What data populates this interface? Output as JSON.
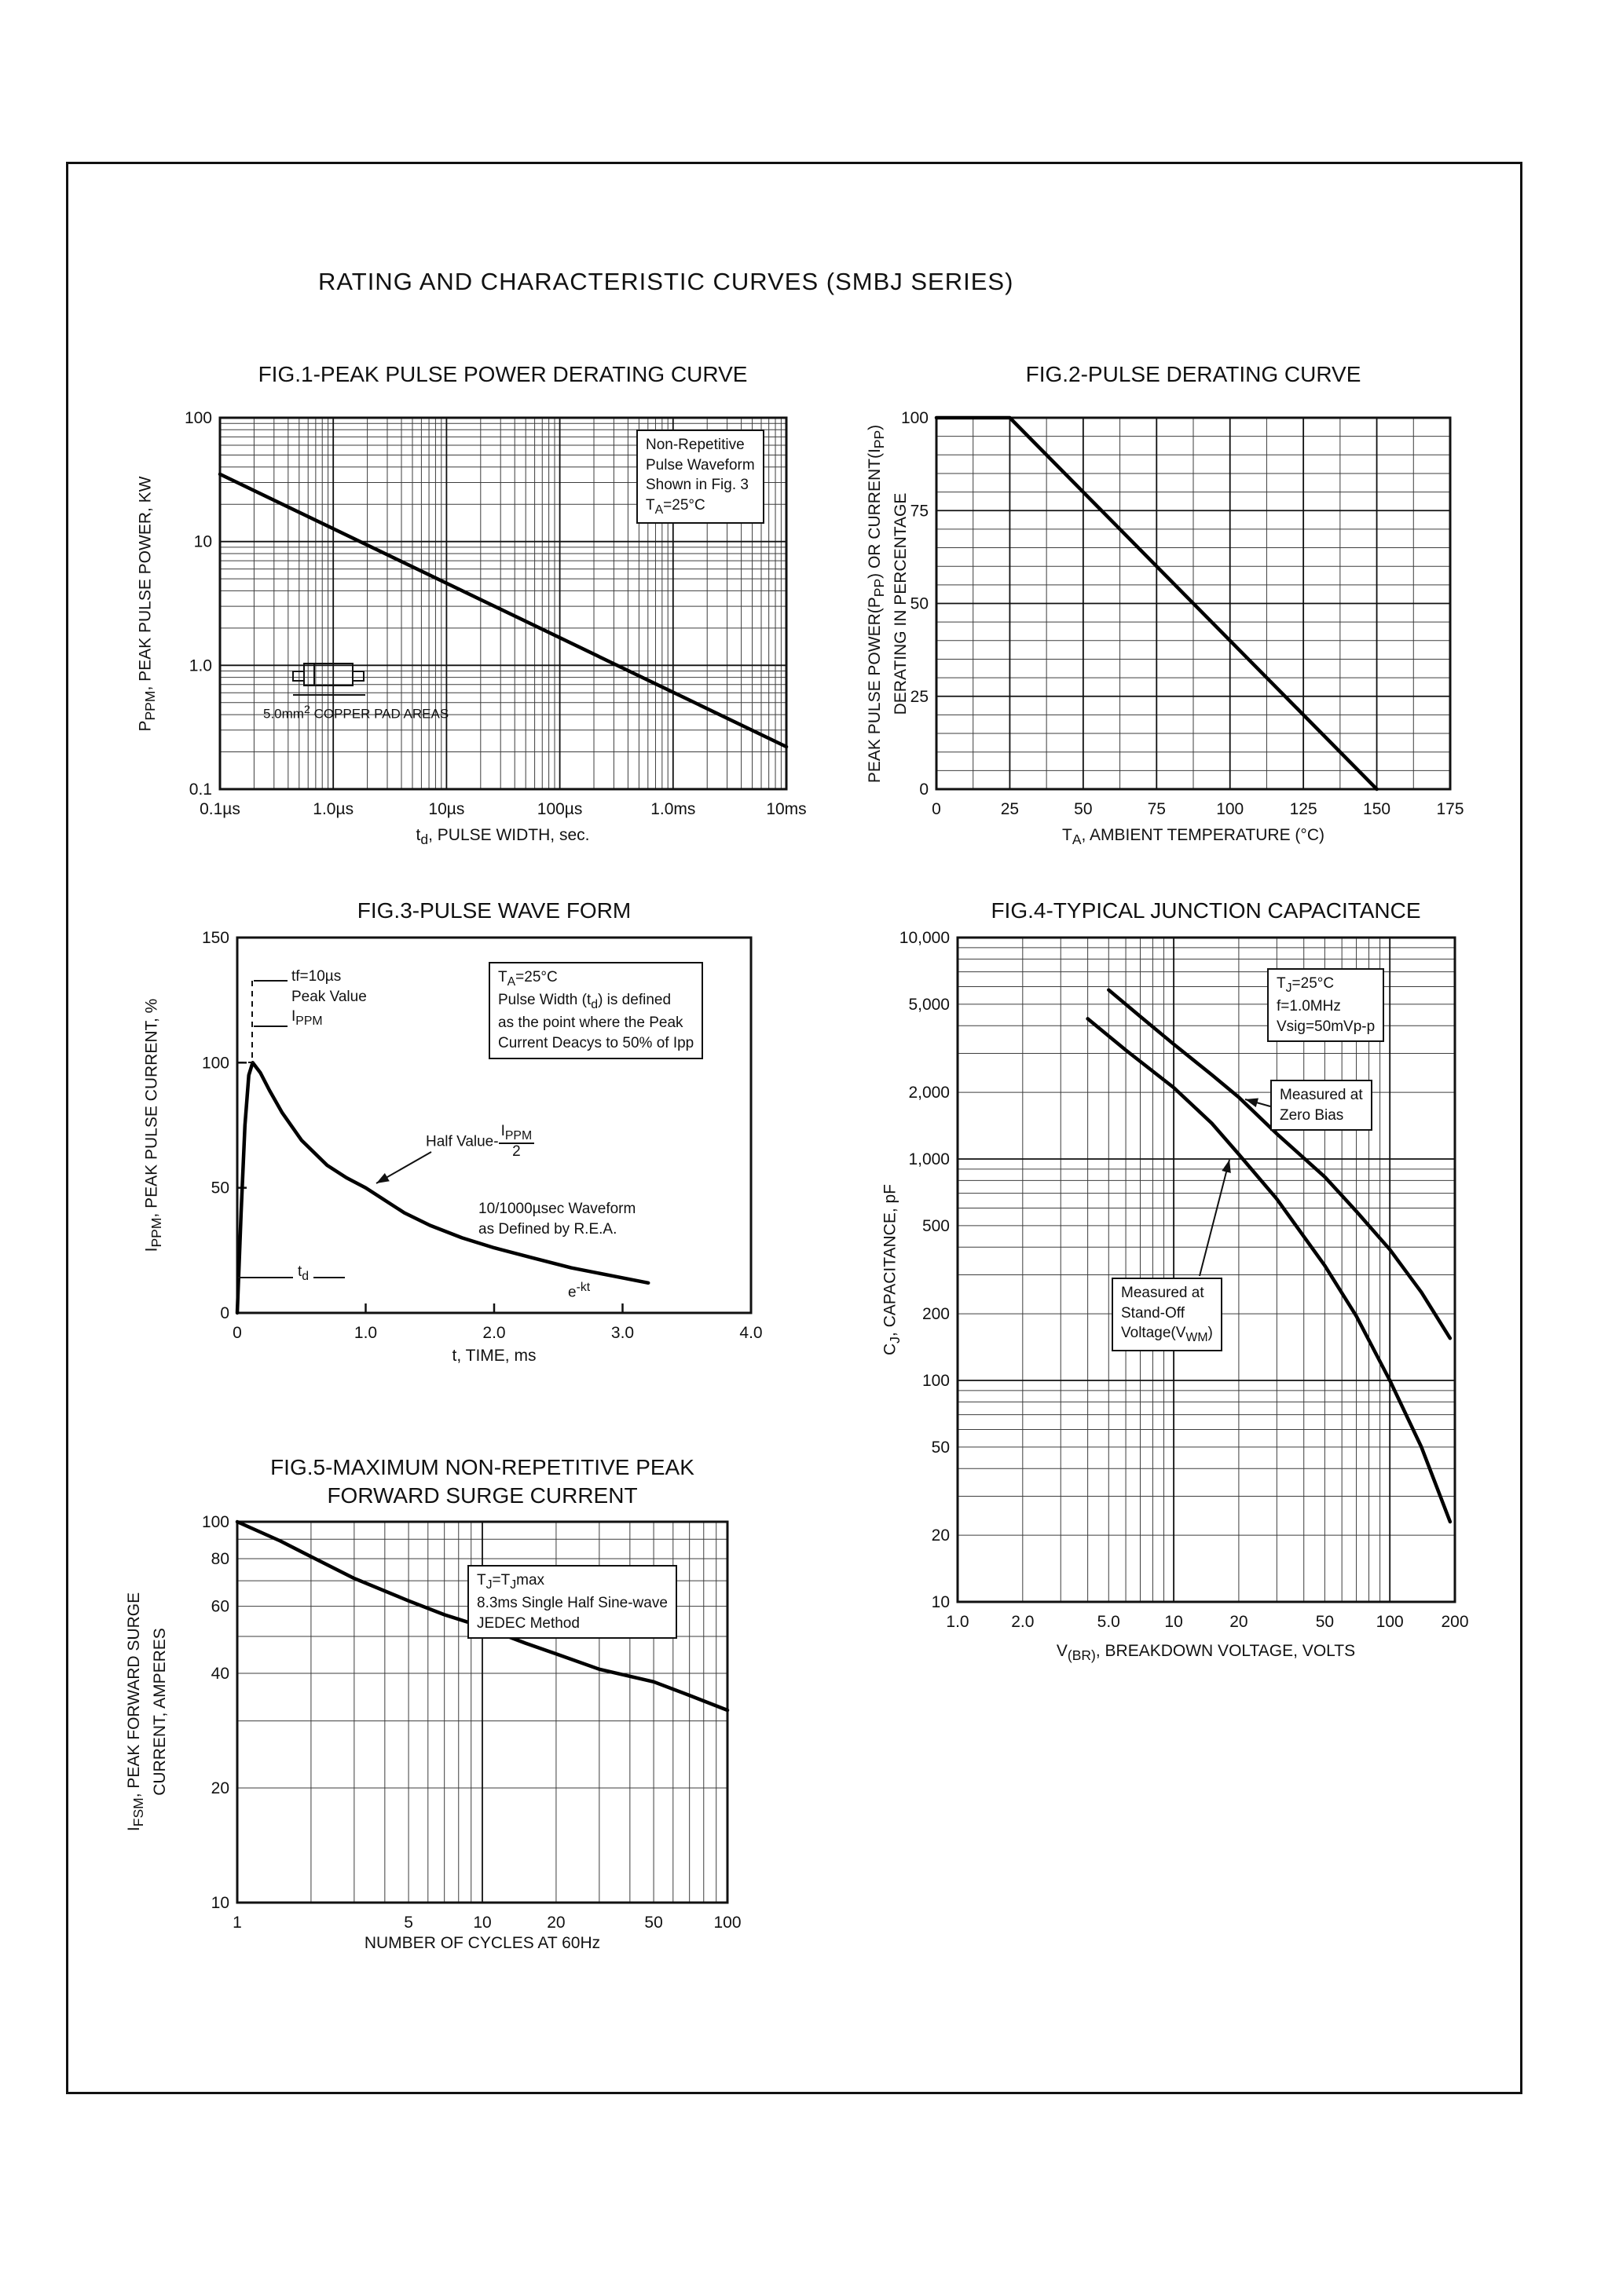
{
  "page": {
    "title": "RATING AND CHARACTERISTIC CURVES (SMBJ SERIES)"
  },
  "figures": {
    "fig1": {
      "title": "FIG.1-PEAK PULSE POWER DERATING CURVE",
      "xlabel_html": "t<sub>d</sub>, PULSE WIDTH, sec.",
      "ylabel_html": "P<sub>PPM</sub>, PEAK PULSE POWER, KW",
      "note_html": "Non-Repetitive<br>Pulse Waveform<br>Shown in Fig. 3<br>T<sub>A</sub>=25&#176;C",
      "pad_label_html": "5.0mm<sup>2</sup> COPPER PAD AREAS"
    },
    "fig2": {
      "title": "FIG.2-PULSE DERATING CURVE",
      "xlabel_html": "T<sub>A</sub>, AMBIENT TEMPERATURE (&#176;C)",
      "ylabel_html": "PEAK PULSE POWER(P<sub>PP</sub>) OR CURRENT(I<sub>PP</sub>)<br>DERATING IN PERCENTAGE"
    },
    "fig3": {
      "title": "FIG.3-PULSE WAVE FORM",
      "xlabel_html": "t, TIME, ms",
      "ylabel_html": "I<sub>PPM</sub>, PEAK PULSE CURRENT, %",
      "tf_html": "tf=10&#181;s<br>Peak Value<br>I<sub>PPM</sub>",
      "note_html": "T<sub>A</sub>=25&#176;C<br>Pulse Width (t<sub>d</sub>) is defined<br>as the point where the Peak<br>Current Deacys to 50% of Ipp",
      "half_value_html": "Half Value-<span class=\"stack\"><span>I<sub>PPM</sub></span><span>2</span></span>",
      "rea_html": "10/1000&#181;sec Waveform<br>as Defined by R.E.A.",
      "td_html": "t<sub>d</sub>",
      "ekt_html": "e<sup>-kt</sup>"
    },
    "fig4": {
      "title": "FIG.4-TYPICAL JUNCTION CAPACITANCE",
      "xlabel_html": "V<sub>(BR)</sub>, BREAKDOWN VOLTAGE, VOLTS",
      "ylabel_html": "C<sub>J</sub>, CAPACITANCE, pF",
      "cond_html": "T<sub>J</sub>=25&#176;C<br>f=1.0MHz<br>Vsig=50mVp-p",
      "zero_bias_html": "Measured at<br>Zero Bias",
      "standoff_html": "Measured at<br>Stand-Off<br>Voltage(V<sub>WM</sub>)"
    },
    "fig5": {
      "title_html": "FIG.5-MAXIMUM NON-REPETITIVE PEAK<br>FORWARD SURGE CURRENT",
      "xlabel_html": "NUMBER OF CYCLES AT 60Hz",
      "ylabel_html": "I<sub>FSM</sub>, PEAK FORWARD SURGE<br>CURRENT, AMPERES",
      "note_html": "T<sub>J</sub>=T<sub>J</sub>max<br>8.3ms Single Half Sine-wave<br>JEDEC Method"
    }
  },
  "chart_data": [
    {
      "id": "fig1",
      "type": "line",
      "title": "FIG.1-PEAK PULSE POWER DERATING CURVE",
      "xlabel": "td, PULSE WIDTH, sec.",
      "ylabel": "PPPM, PEAK PULSE POWER, KW",
      "grid": "log",
      "x_axis": {
        "scale": "log",
        "min": 1e-07,
        "max": 0.01,
        "tick_values": [
          1e-07,
          1e-06,
          1e-05,
          0.0001,
          0.001,
          0.01
        ],
        "tick_labels": [
          "0.1µs",
          "1.0µs",
          "10µs",
          "100µs",
          "1.0ms",
          "10ms"
        ]
      },
      "y_axis": {
        "scale": "log",
        "min": 0.1,
        "max": 100,
        "tick_values": [
          0.1,
          1,
          10,
          100
        ],
        "tick_labels": [
          "0.1",
          "1.0",
          "10",
          "100"
        ]
      },
      "annotations": [
        "Non-Repetitive Pulse Waveform Shown in Fig. 3  TA=25°C",
        "5.0mm² COPPER PAD AREAS"
      ],
      "series": [
        {
          "name": "Peak pulse power vs pulse width",
          "points": [
            [
              1e-07,
              35
            ],
            [
              0.01,
              0.22
            ]
          ]
        }
      ]
    },
    {
      "id": "fig2",
      "type": "line",
      "title": "FIG.2-PULSE DERATING CURVE",
      "xlabel": "TA, AMBIENT TEMPERATURE (°C)",
      "ylabel": "PEAK PULSE POWER(PPP) OR CURRENT(IPP) DERATING IN PERCENTAGE",
      "grid": "linear",
      "x_axis": {
        "scale": "linear",
        "min": 0,
        "max": 175,
        "major_step": 25,
        "minor_step": 12.5,
        "tick_values": [
          0,
          25,
          50,
          75,
          100,
          125,
          150,
          175
        ],
        "tick_labels": [
          "0",
          "25",
          "50",
          "75",
          "100",
          "125",
          "150",
          "175"
        ]
      },
      "y_axis": {
        "scale": "linear",
        "min": 0,
        "max": 100,
        "major_step": 25,
        "minor_step": 5,
        "tick_values": [
          0,
          25,
          50,
          75,
          100
        ],
        "tick_labels": [
          "0",
          "25",
          "50",
          "75",
          "100"
        ]
      },
      "series": [
        {
          "name": "Derating percentage vs ambient temperature",
          "points": [
            [
              0,
              100
            ],
            [
              25,
              100
            ],
            [
              150,
              0
            ]
          ]
        }
      ]
    },
    {
      "id": "fig3",
      "type": "line",
      "title": "FIG.3-PULSE WAVE FORM",
      "xlabel": "t, TIME, ms",
      "ylabel": "IPPM, PEAK PULSE CURRENT, %",
      "grid": "none",
      "x_axis": {
        "scale": "linear",
        "min": 0,
        "max": 4,
        "tick_values": [
          0,
          1,
          2,
          3,
          4
        ],
        "tick_labels": [
          "0",
          "1.0",
          "2.0",
          "3.0",
          "4.0"
        ]
      },
      "y_axis": {
        "scale": "linear",
        "min": 0,
        "max": 150,
        "tick_values": [
          0,
          50,
          100,
          150
        ],
        "tick_labels": [
          "0",
          "50",
          "100",
          "150"
        ]
      },
      "annotations": [
        "tf=10µs Peak Value IPPM",
        "TA=25°C Pulse Width (td) is defined as the point where the Peak Current Deacys to 50% of Ipp",
        "Half Value-IPPM/2",
        "10/1000µsec Waveform as Defined by R.E.A.",
        "td",
        "e-kt"
      ],
      "series": [
        {
          "name": "10/1000µs pulse waveform",
          "points": [
            [
              0,
              0
            ],
            [
              0.03,
              40
            ],
            [
              0.06,
              75
            ],
            [
              0.09,
              95
            ],
            [
              0.12,
              100
            ],
            [
              0.18,
              96
            ],
            [
              0.25,
              89
            ],
            [
              0.35,
              80
            ],
            [
              0.5,
              69
            ],
            [
              0.7,
              59
            ],
            [
              0.85,
              54
            ],
            [
              1.0,
              50
            ],
            [
              1.15,
              45
            ],
            [
              1.3,
              40
            ],
            [
              1.5,
              35
            ],
            [
              1.75,
              30
            ],
            [
              2.0,
              26
            ],
            [
              2.3,
              22
            ],
            [
              2.6,
              18
            ],
            [
              2.9,
              15
            ],
            [
              3.2,
              12
            ]
          ]
        }
      ]
    },
    {
      "id": "fig4",
      "type": "line",
      "title": "FIG.4-TYPICAL JUNCTION CAPACITANCE",
      "xlabel": "V(BR), BREAKDOWN VOLTAGE, VOLTS",
      "ylabel": "CJ, CAPACITANCE, pF",
      "grid": "log",
      "x_axis": {
        "scale": "log",
        "min": 1,
        "max": 200,
        "tick_values": [
          1,
          2,
          5,
          10,
          20,
          50,
          100,
          200
        ],
        "tick_labels": [
          "1.0",
          "2.0",
          "5.0",
          "10",
          "20",
          "50",
          "100",
          "200"
        ]
      },
      "y_axis": {
        "scale": "log",
        "min": 10,
        "max": 10000,
        "tick_values": [
          10,
          20,
          50,
          100,
          200,
          500,
          1000,
          2000,
          5000,
          10000
        ],
        "tick_labels": [
          "10",
          "20",
          "50",
          "100",
          "200",
          "500",
          "1,000",
          "2,000",
          "5,000",
          "10,000"
        ]
      },
      "annotations": [
        "TJ=25°C f=1.0MHz Vsig=50mVp-p",
        "Measured at Zero Bias",
        "Measured at Stand-Off Voltage(VWM)"
      ],
      "series": [
        {
          "name": "Measured at Zero Bias",
          "points": [
            [
              5,
              5800
            ],
            [
              7,
              4400
            ],
            [
              10,
              3300
            ],
            [
              15,
              2400
            ],
            [
              20,
              1900
            ],
            [
              30,
              1300
            ],
            [
              50,
              830
            ],
            [
              70,
              580
            ],
            [
              100,
              390
            ],
            [
              140,
              250
            ],
            [
              190,
              155
            ]
          ]
        },
        {
          "name": "Measured at Stand-Off Voltage(VWM)",
          "points": [
            [
              4,
              4300
            ],
            [
              6,
              3100
            ],
            [
              10,
              2100
            ],
            [
              15,
              1450
            ],
            [
              20,
              1050
            ],
            [
              30,
              660
            ],
            [
              50,
              330
            ],
            [
              70,
              195
            ],
            [
              100,
              100
            ],
            [
              140,
              50
            ],
            [
              190,
              23
            ]
          ]
        }
      ]
    },
    {
      "id": "fig5",
      "type": "line",
      "title": "FIG.5-MAXIMUM NON-REPETITIVE PEAK FORWARD SURGE CURRENT",
      "xlabel": "NUMBER OF CYCLES AT 60Hz",
      "ylabel": "IFSM, PEAK FORWARD SURGE CURRENT, AMPERES",
      "grid": "log",
      "x_axis": {
        "scale": "log",
        "min": 1,
        "max": 100,
        "tick_values": [
          1,
          5,
          10,
          20,
          50,
          100
        ],
        "tick_labels": [
          "1",
          "5",
          "10",
          "20",
          "50",
          "100"
        ]
      },
      "y_axis": {
        "scale": "log",
        "min": 10,
        "max": 100,
        "tick_values": [
          10,
          20,
          40,
          60,
          80,
          100
        ],
        "tick_labels": [
          "10",
          "20",
          "40",
          "60",
          "80",
          "100"
        ]
      },
      "annotations": [
        "TJ=TJmax 8.3ms Single Half Sine-wave JEDEC Method"
      ],
      "series": [
        {
          "name": "Peak forward surge current vs cycles",
          "points": [
            [
              1,
              100
            ],
            [
              1.5,
              89
            ],
            [
              2,
              81
            ],
            [
              3,
              71
            ],
            [
              5,
              62
            ],
            [
              7,
              57
            ],
            [
              10,
              53
            ],
            [
              15,
              48
            ],
            [
              20,
              45
            ],
            [
              30,
              41
            ],
            [
              50,
              38
            ],
            [
              70,
              35
            ],
            [
              100,
              32
            ]
          ]
        }
      ]
    }
  ]
}
